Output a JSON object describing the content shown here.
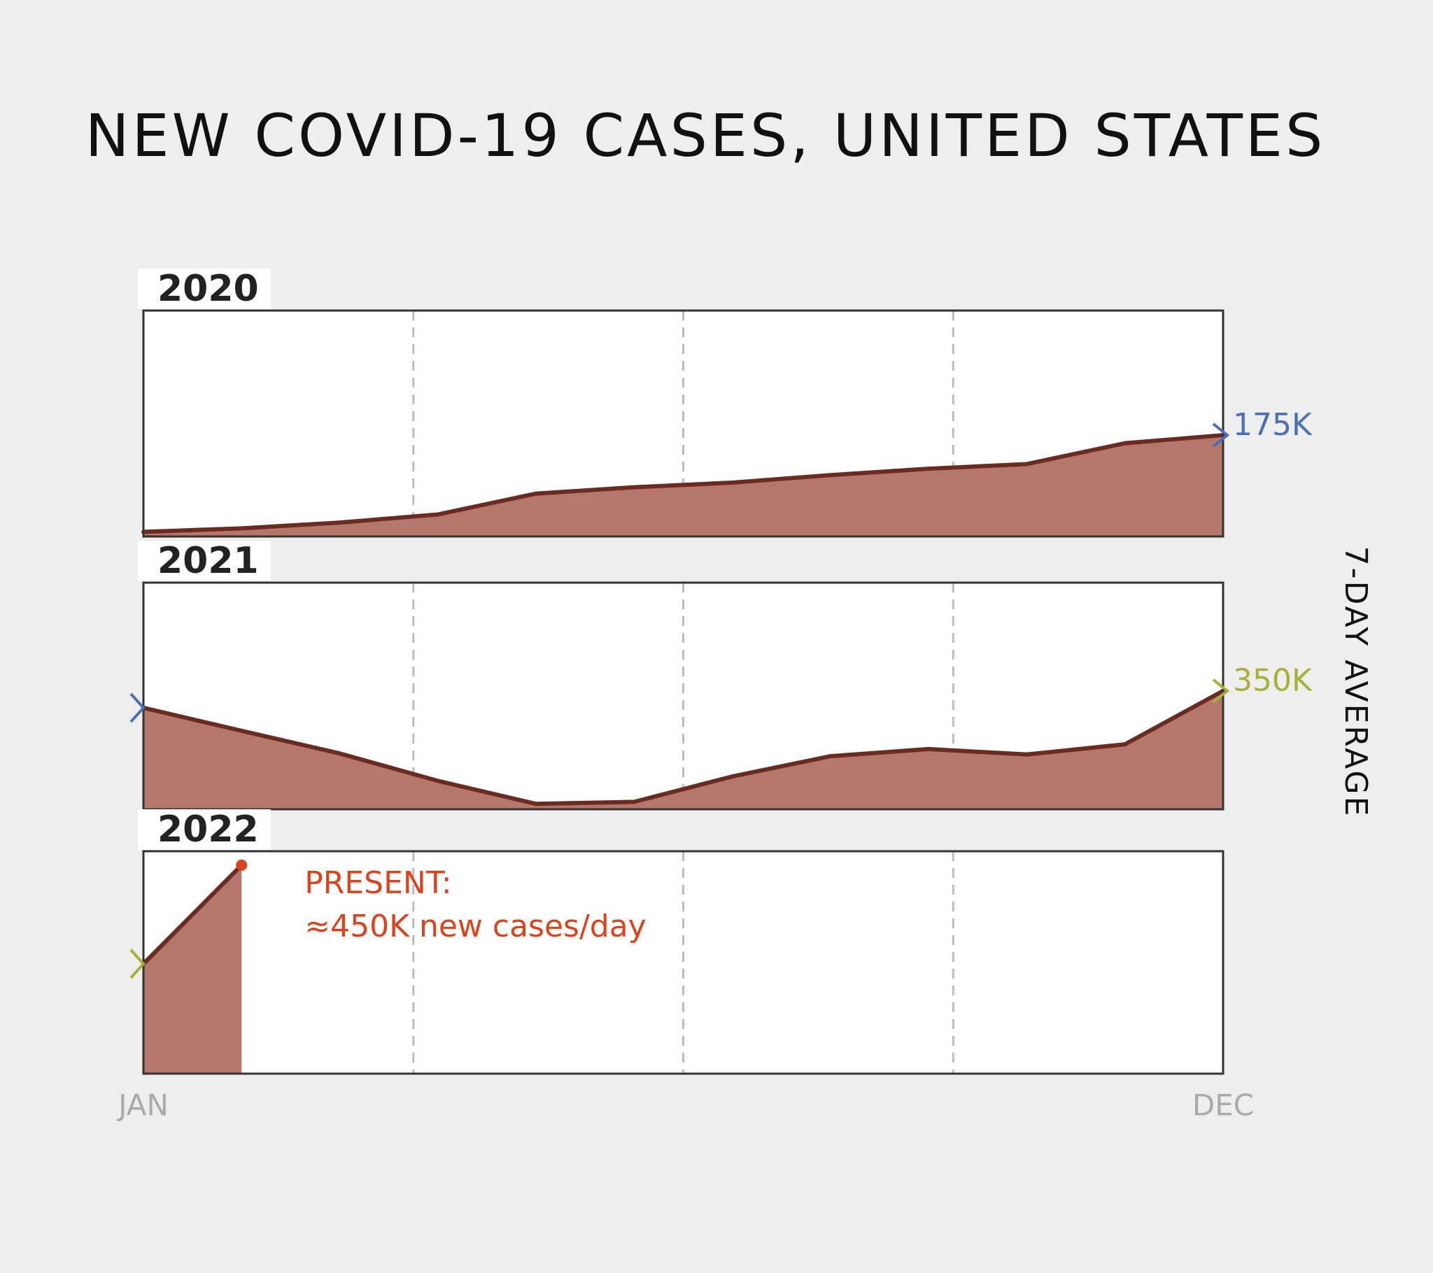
{
  "title": "NEW COVID-19 CASES, UNITED STATES",
  "side_label": "7-DAY AVERAGE",
  "chart_data": [
    {
      "type": "area",
      "title": "2020",
      "color": "#b5776b",
      "line_color": "#6b2a22",
      "grid": true,
      "values": [
        8000,
        14000,
        24000,
        38000,
        74000,
        85000,
        93000,
        106000,
        117000,
        125000,
        161000,
        175000
      ],
      "value_labels": [
        null,
        null,
        null,
        null,
        null,
        null,
        null,
        null,
        null,
        null,
        null,
        "175K"
      ],
      "label_color": "#4a6fb5",
      "ylim": [
        0,
        390000
      ]
    },
    {
      "type": "area",
      "title": "2021",
      "color": "#b5776b",
      "line_color": "#6b2a22",
      "grid": true,
      "values": [
        300000,
        232000,
        165000,
        84000,
        16000,
        22000,
        97000,
        157000,
        178000,
        162000,
        192000,
        350000
      ],
      "value_labels": [
        null,
        null,
        null,
        null,
        null,
        null,
        null,
        null,
        null,
        null,
        null,
        "350K"
      ],
      "label_color": "#a8b03a",
      "ylim": [
        0,
        670000
      ]
    },
    {
      "type": "area",
      "title": "2022",
      "color": "#b5776b",
      "line_color": "#6b2a22",
      "grid": true,
      "categories": [
        "JAN",
        null,
        null,
        null,
        null,
        null,
        null,
        null,
        null,
        null,
        null,
        "DEC"
      ],
      "values": [
        237000,
        450000,
        null,
        null,
        null,
        null,
        null,
        null,
        null,
        null,
        null,
        null
      ],
      "annotations": [
        "PRESENT:",
        "≈450K new cases/day"
      ],
      "annotation_color": "#d9431e",
      "ylim": [
        0,
        480000
      ]
    }
  ]
}
